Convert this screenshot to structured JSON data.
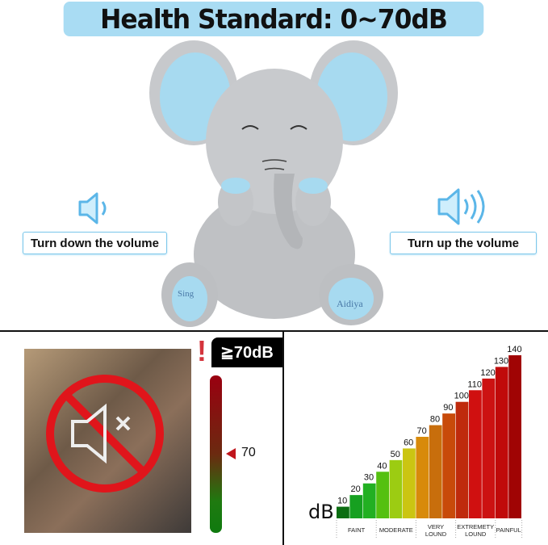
{
  "title": "Health Standard: 0~70dB",
  "left_control": {
    "label": "Turn down the volume",
    "icon": "speaker-low-icon"
  },
  "right_control": {
    "label": "Turn up the volume",
    "icon": "speaker-high-icon"
  },
  "product": {
    "left_foot_text": "Sing",
    "right_foot_text": "Aidiya"
  },
  "warning": {
    "badge": "≧70dB",
    "exclaim": "!",
    "meter_marker": "70",
    "icon": "muted-speaker-prohibited-icon"
  },
  "chart_data": {
    "type": "bar",
    "ylabel": "dB",
    "categories": [
      "10",
      "20",
      "30",
      "40",
      "50",
      "60",
      "70",
      "80",
      "90",
      "100",
      "110",
      "120",
      "130",
      "140"
    ],
    "values": [
      10,
      20,
      30,
      40,
      50,
      60,
      70,
      80,
      90,
      100,
      110,
      120,
      130,
      140
    ],
    "colors": [
      "#0b6e12",
      "#16a020",
      "#22b022",
      "#55c010",
      "#9ccc12",
      "#cbc512",
      "#d88a0a",
      "#c86e0c",
      "#c84a0a",
      "#bf2a0c",
      "#d01010",
      "#cc1212",
      "#c00a0a",
      "#a00404"
    ],
    "groups": [
      {
        "label": "FAINT",
        "from": 0,
        "to": 3
      },
      {
        "label": "MODERATE",
        "from": 3,
        "to": 6
      },
      {
        "label": "VERY LOUND",
        "from": 6,
        "to": 9
      },
      {
        "label": "EXTREMETY LOUND",
        "from": 9,
        "to": 12
      },
      {
        "label": "PAINFUL",
        "from": 12,
        "to": 14
      }
    ],
    "ylim": [
      0,
      140
    ]
  }
}
